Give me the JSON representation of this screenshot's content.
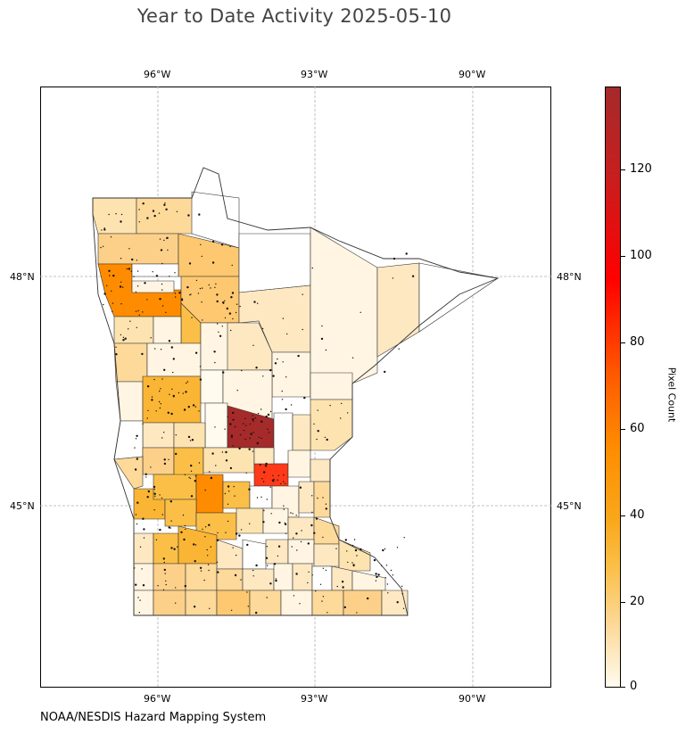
{
  "title": "Year to Date Activity 2025-05-10",
  "credit": "NOAA/NESDIS Hazard Mapping System",
  "map": {
    "lon_ticks": [
      "96°W",
      "93°W",
      "90°W"
    ],
    "lat_ticks": [
      "48°N",
      "45°N"
    ]
  },
  "colorbar": {
    "label": "Pixel Count",
    "ticks": [
      "0",
      "20",
      "40",
      "60",
      "80",
      "100",
      "120"
    ],
    "max": 139
  },
  "colors": {
    "low": "#fffbee",
    "mid": "#fbbf48",
    "orange": "#ff8c00",
    "red": "#ff0000",
    "high": "#a52a2a"
  }
}
